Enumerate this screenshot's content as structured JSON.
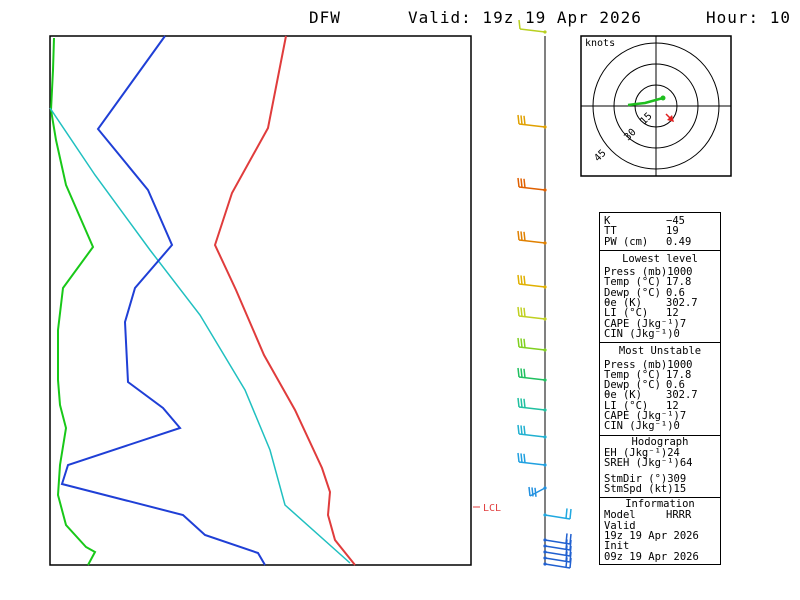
{
  "header": {
    "station": "DFW",
    "valid": "Valid: 19z 19 Apr 2026",
    "hour": "Hour: 10"
  },
  "hodograph": {
    "units_label": "knots",
    "ring_labels": [
      "15",
      "30",
      "45"
    ],
    "wind_color": "#1fbf1f",
    "storm_motion_color": "#e02020"
  },
  "lcl_label": "LCL",
  "colors": {
    "temperature": "#e03c3c",
    "dewpoint": "#1f3fd6",
    "parcel": "#20c0c0",
    "left_trace": "#18c818"
  },
  "indices": {
    "top": [
      {
        "label": "K",
        "value": "−45"
      },
      {
        "label": "TT",
        "value": "19"
      },
      {
        "label": "PW (cm)",
        "value": "0.49"
      }
    ],
    "lowest_title": "Lowest level",
    "lowest": [
      {
        "label": "Press (mb)",
        "value": "1000"
      },
      {
        "label": "Temp (°C)",
        "value": "17.8"
      },
      {
        "label": "Dewp (°C)",
        "value": "0.6"
      },
      {
        "label": "θe (K)",
        "value": "302.7"
      },
      {
        "label": "LI (°C)",
        "value": "12"
      },
      {
        "label": "CAPE (Jkg⁻¹)",
        "value": "7"
      },
      {
        "label": "CIN (Jkg⁻¹)",
        "value": "0"
      }
    ],
    "unstable_title": "Most Unstable",
    "unstable": [
      {
        "label": "Press (mb)",
        "value": "1000"
      },
      {
        "label": "Temp (°C)",
        "value": "17.8"
      },
      {
        "label": "Dewp (°C)",
        "value": "0.6"
      },
      {
        "label": "θe (K)",
        "value": "302.7"
      },
      {
        "label": "LI (°C)",
        "value": "12"
      },
      {
        "label": "CAPE (Jkg⁻¹)",
        "value": "7"
      },
      {
        "label": "CIN (Jkg⁻¹)",
        "value": "0"
      }
    ],
    "hodo_title": "Hodograph",
    "hodo": [
      {
        "label": "EH (Jkg⁻¹)",
        "value": "24"
      },
      {
        "label": "SREH (Jkg⁻¹)",
        "value": "64"
      }
    ],
    "storm": [
      {
        "label": "StmDir (°)",
        "value": "309"
      },
      {
        "label": "StmSpd (kt)",
        "value": "15"
      }
    ],
    "info_title": "Information",
    "info": [
      {
        "label": "Model",
        "value": "HRRR"
      },
      {
        "label": "Valid",
        "value": ""
      },
      {
        "label": "19z 19 Apr 2026",
        "value": ""
      },
      {
        "label": "Init",
        "value": ""
      },
      {
        "label": "09z 19 Apr 2026",
        "value": ""
      }
    ]
  }
}
